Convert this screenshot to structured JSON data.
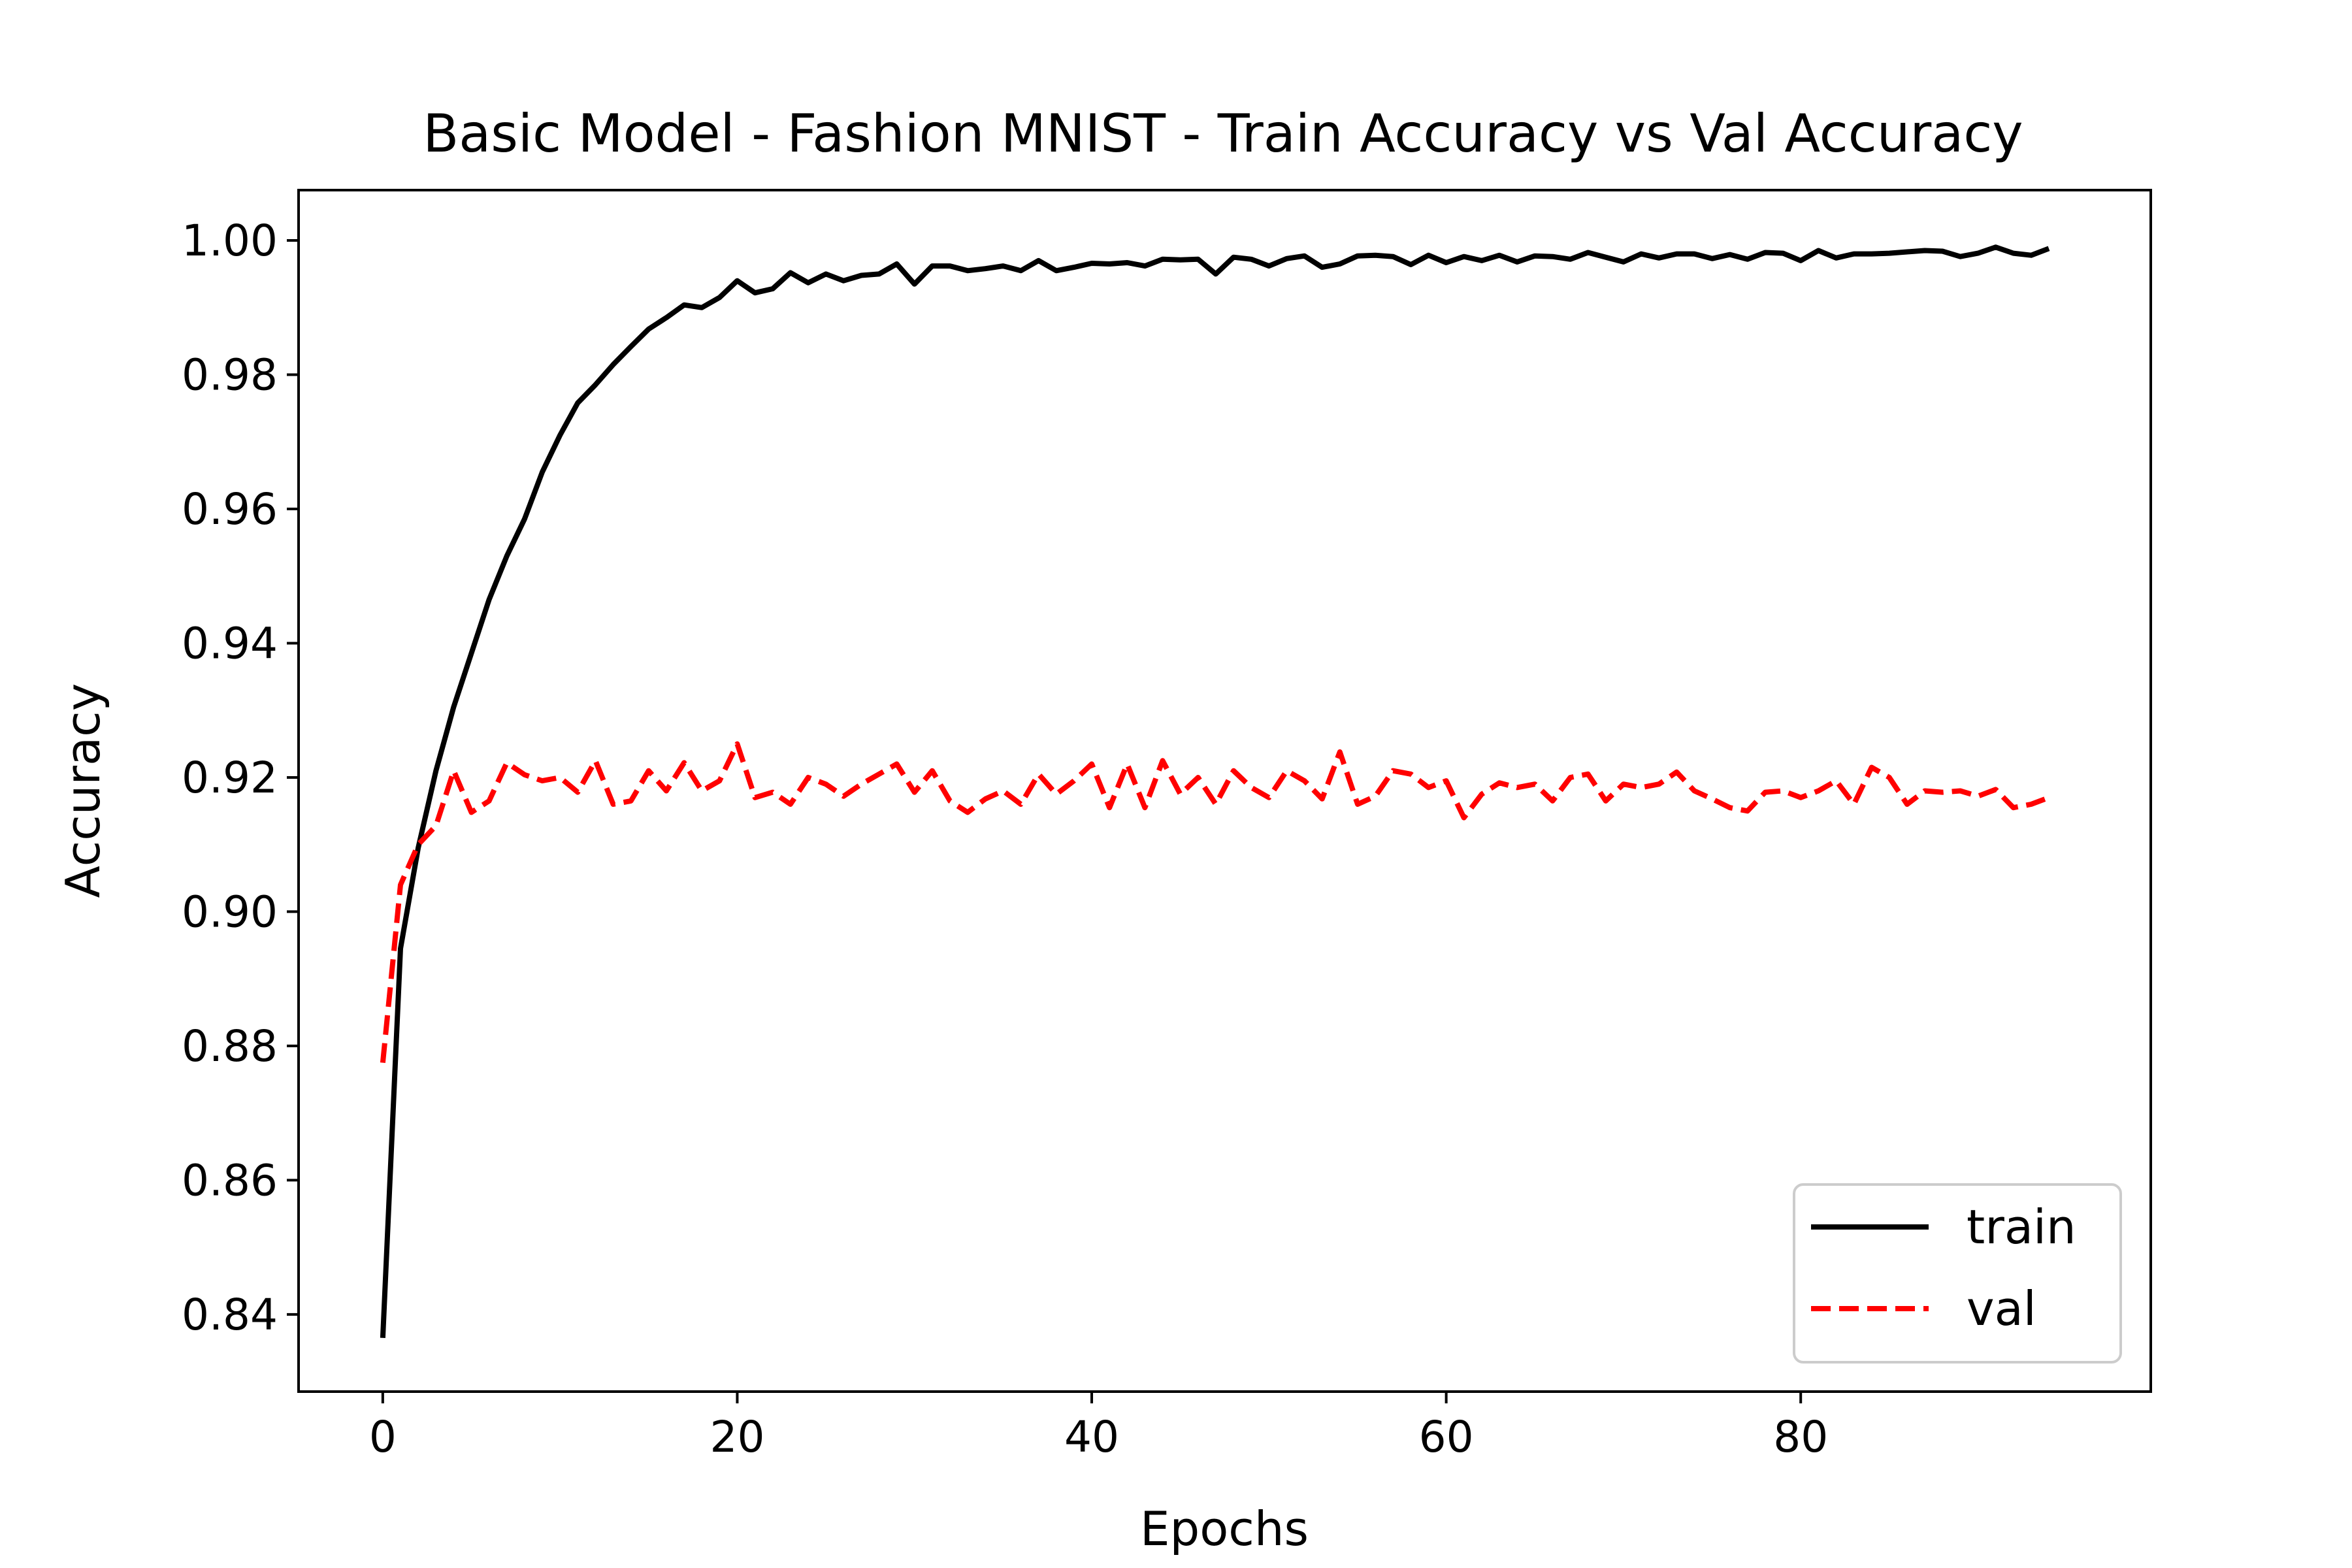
{
  "chart_data": {
    "type": "line",
    "title": "Basic Model - Fashion MNIST - Train Accuracy vs Val Accuracy",
    "xlabel": "Epochs",
    "ylabel": "Accuracy",
    "xlim": [
      -4.75,
      99.75
    ],
    "ylim": [
      0.8285,
      1.0075
    ],
    "xticks": [
      0,
      20,
      40,
      60,
      80
    ],
    "xtick_labels": [
      "0",
      "20",
      "40",
      "60",
      "80"
    ],
    "yticks": [
      0.84,
      0.86,
      0.88,
      0.9,
      0.92,
      0.94,
      0.96,
      0.98,
      1.0
    ],
    "ytick_labels": [
      "0.84",
      "0.86",
      "0.88",
      "0.90",
      "0.92",
      "0.94",
      "0.96",
      "0.98",
      "1.00"
    ],
    "grid": false,
    "legend": {
      "position": "lower right",
      "entries": [
        "train",
        "val"
      ]
    },
    "x_start": 0,
    "series": [
      {
        "name": "train",
        "color": "#000000",
        "style": "solid",
        "values": [
          0.8365,
          0.8945,
          0.9095,
          0.921,
          0.9305,
          0.9385,
          0.9465,
          0.953,
          0.9585,
          0.9655,
          0.971,
          0.9758,
          0.9785,
          0.9815,
          0.9842,
          0.9868,
          0.9885,
          0.9904,
          0.99,
          0.9915,
          0.994,
          0.9922,
          0.9928,
          0.9952,
          0.9937,
          0.995,
          0.994,
          0.9948,
          0.995,
          0.9965,
          0.9935,
          0.9962,
          0.9962,
          0.9955,
          0.9958,
          0.9962,
          0.9955,
          0.997,
          0.9955,
          0.996,
          0.9966,
          0.9965,
          0.9967,
          0.9962,
          0.9972,
          0.9971,
          0.9972,
          0.995,
          0.9975,
          0.9972,
          0.9962,
          0.9973,
          0.9977,
          0.996,
          0.9965,
          0.9977,
          0.9978,
          0.9976,
          0.9964,
          0.9978,
          0.9967,
          0.9976,
          0.997,
          0.9978,
          0.9968,
          0.9977,
          0.9976,
          0.9972,
          0.9982,
          0.9975,
          0.9968,
          0.998,
          0.9974,
          0.998,
          0.998,
          0.9973,
          0.9979,
          0.9972,
          0.9982,
          0.9981,
          0.997,
          0.9985,
          0.9974,
          0.998,
          0.998,
          0.9981,
          0.9983,
          0.9985,
          0.9984,
          0.9976,
          0.9981,
          0.999,
          0.9981,
          0.9978,
          0.9988
        ]
      },
      {
        "name": "val",
        "color": "#ff0000",
        "style": "dashed",
        "values": [
          0.8775,
          0.904,
          0.91,
          0.9128,
          0.921,
          0.9148,
          0.9165,
          0.9222,
          0.9204,
          0.9195,
          0.92,
          0.9178,
          0.9225,
          0.916,
          0.9165,
          0.921,
          0.918,
          0.9222,
          0.918,
          0.9195,
          0.925,
          0.917,
          0.9178,
          0.916,
          0.92,
          0.919,
          0.9172,
          0.919,
          0.9205,
          0.922,
          0.9178,
          0.921,
          0.9165,
          0.9148,
          0.9168,
          0.918,
          0.916,
          0.9205,
          0.9175,
          0.9195,
          0.922,
          0.9155,
          0.922,
          0.9155,
          0.9225,
          0.9175,
          0.92,
          0.916,
          0.921,
          0.9185,
          0.917,
          0.921,
          0.9195,
          0.9168,
          0.9238,
          0.916,
          0.9172,
          0.921,
          0.9205,
          0.9185,
          0.9195,
          0.914,
          0.9175,
          0.9192,
          0.9185,
          0.919,
          0.9165,
          0.92,
          0.9205,
          0.9165,
          0.919,
          0.9185,
          0.919,
          0.9208,
          0.918,
          0.9168,
          0.9155,
          0.915,
          0.9178,
          0.918,
          0.917,
          0.918,
          0.9195,
          0.916,
          0.9215,
          0.92,
          0.916,
          0.918,
          0.9178,
          0.918,
          0.9172,
          0.9182,
          0.9155,
          0.916,
          0.917
        ]
      }
    ]
  }
}
